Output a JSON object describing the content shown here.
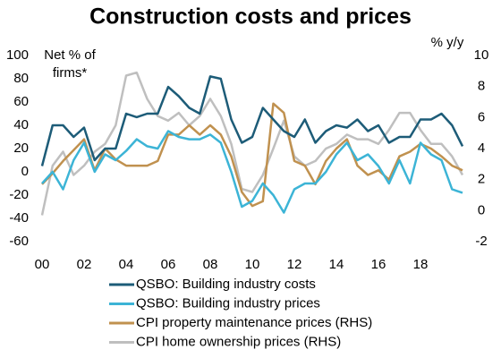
{
  "chart_data": {
    "type": "line",
    "title": "Construction costs and prices",
    "annotations": {
      "left": "Net % of firms*",
      "right": "% y/y"
    },
    "x": [
      2000,
      2000.5,
      2001,
      2001.5,
      2002,
      2002.5,
      2003,
      2003.5,
      2004,
      2004.5,
      2005,
      2005.5,
      2006,
      2006.5,
      2007,
      2007.5,
      2008,
      2008.5,
      2009,
      2009.5,
      2010,
      2010.5,
      2011,
      2011.5,
      2012,
      2012.5,
      2013,
      2013.5,
      2014,
      2014.5,
      2015,
      2015.5,
      2016,
      2016.5,
      2017,
      2017.5,
      2018,
      2018.5,
      2019,
      2019.5,
      2020
    ],
    "xlim": [
      2000,
      2020
    ],
    "xticks": [
      {
        "value": 2000,
        "label": "00"
      },
      {
        "value": 2002,
        "label": "02"
      },
      {
        "value": 2004,
        "label": "04"
      },
      {
        "value": 2006,
        "label": "06"
      },
      {
        "value": 2008,
        "label": "08"
      },
      {
        "value": 2010,
        "label": "10"
      },
      {
        "value": 2012,
        "label": "12"
      },
      {
        "value": 2014,
        "label": "14"
      },
      {
        "value": 2016,
        "label": "16"
      },
      {
        "value": 2018,
        "label": "18"
      }
    ],
    "ylim": [
      -60,
      100
    ],
    "yticks": [
      -60,
      -40,
      -20,
      0,
      20,
      40,
      60,
      80,
      100
    ],
    "y2lim": [
      -2,
      10
    ],
    "y2ticks": [
      -2,
      0,
      2,
      4,
      6,
      8,
      10
    ],
    "grid": false,
    "legend": "bottom",
    "series": [
      {
        "name": "QSBO: Building industry costs",
        "color": "#1d5c78",
        "values": [
          5,
          40,
          40,
          30,
          38,
          10,
          20,
          20,
          50,
          47,
          50,
          50,
          73,
          65,
          55,
          50,
          82,
          80,
          45,
          25,
          30,
          55,
          45,
          35,
          30,
          45,
          25,
          35,
          40,
          38,
          45,
          35,
          40,
          25,
          30,
          30,
          45,
          45,
          50,
          40,
          22
        ]
      },
      {
        "name": "QSBO: Building industry prices",
        "color": "#3cb4d6",
        "values": [
          -10,
          0,
          -15,
          10,
          25,
          0,
          15,
          10,
          18,
          28,
          22,
          20,
          35,
          30,
          28,
          28,
          32,
          25,
          0,
          -30,
          -25,
          -10,
          -20,
          -35,
          -15,
          -10,
          -10,
          0,
          15,
          25,
          10,
          15,
          5,
          -10,
          10,
          -10,
          25,
          15,
          10,
          -15,
          -18
        ]
      },
      {
        "name": "CPI property maintenance prices (RHS)",
        "color": "#c0914f",
        "axis": "y2",
        "values": [
          1.7,
          2.4,
          3.2,
          3.9,
          4.6,
          2.6,
          4,
          3.3,
          2.9,
          2.9,
          2.9,
          3.2,
          4.9,
          4.9,
          5.5,
          4.9,
          5.5,
          4.9,
          3.5,
          1.2,
          0.3,
          0.6,
          6.9,
          6.3,
          3.2,
          2.9,
          1.7,
          3.2,
          4,
          4.6,
          2.9,
          2.3,
          2.6,
          2,
          3.5,
          3.8,
          4.3,
          4,
          3.5,
          2.9,
          2.6
        ]
      },
      {
        "name": "CPI home ownership prices (RHS)",
        "color": "#bfbfbf",
        "axis": "y2",
        "values": [
          -0.3,
          2.9,
          3.8,
          2.3,
          2.9,
          3.8,
          4.3,
          5.5,
          8.7,
          8.9,
          7.2,
          6.1,
          5.8,
          6.3,
          5.5,
          6.1,
          7.2,
          6.1,
          4.3,
          1.4,
          1.2,
          2.3,
          4,
          5.8,
          3.5,
          2.9,
          3.2,
          4,
          4.3,
          4.9,
          4.6,
          4.6,
          4.3,
          5.2,
          6.3,
          6.3,
          5.2,
          4.3,
          4.3,
          3.5,
          2.3
        ]
      }
    ]
  }
}
